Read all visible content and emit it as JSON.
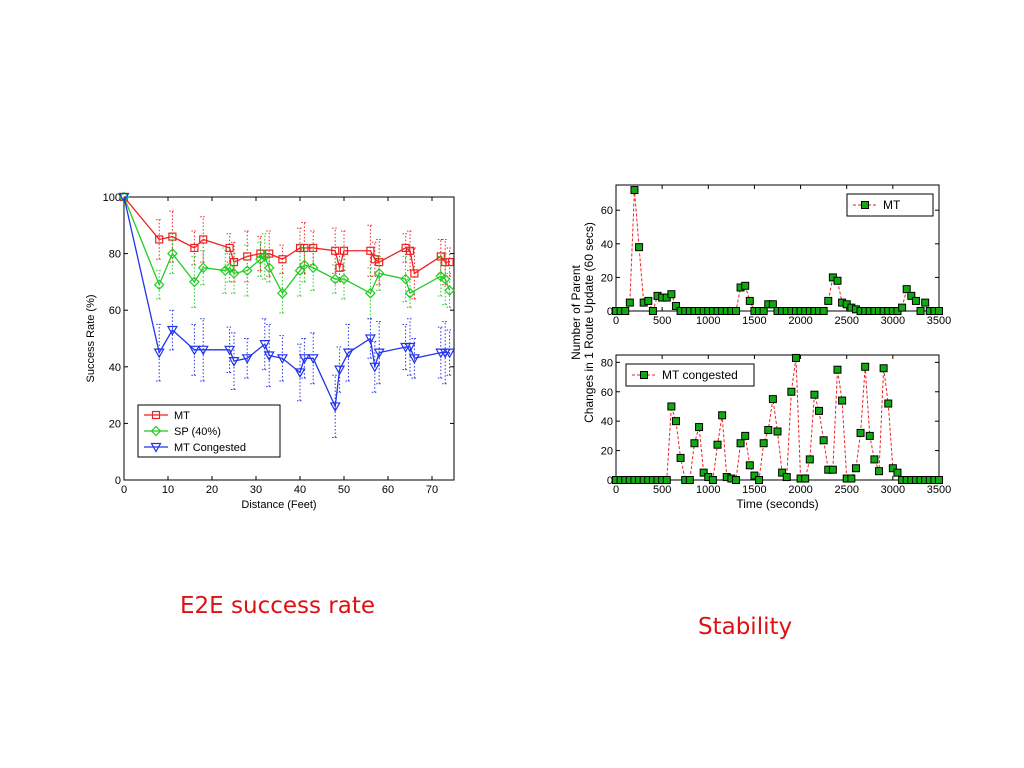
{
  "captions": {
    "left": "E2E success rate",
    "right": "Stability"
  },
  "colors": {
    "caption": "#dd1111",
    "mt_line": "#ee2222",
    "sp_line": "#22cc22",
    "mtc_line": "#2233ee",
    "marker_fill": "#11aa11"
  },
  "chart_data": [
    {
      "type": "line",
      "xlabel": "Distance (Feet)",
      "ylabel": "Success Rate (%)",
      "xlim": [
        0,
        75
      ],
      "ylim": [
        0,
        100
      ],
      "xticks": [
        0,
        10,
        20,
        30,
        40,
        50,
        60,
        70
      ],
      "yticks": [
        0,
        20,
        40,
        60,
        80,
        100
      ],
      "grid": false,
      "legend_position": "bottom-left",
      "series": [
        {
          "name": "MT",
          "marker": "square",
          "x": [
            0,
            8,
            11,
            16,
            18,
            24,
            25,
            28,
            31,
            33,
            36,
            40,
            41,
            43,
            48,
            49,
            50,
            56,
            57,
            58,
            64,
            65,
            66,
            72,
            73,
            74
          ],
          "y": [
            100,
            85,
            86,
            82,
            85,
            82,
            77,
            79,
            80,
            80,
            78,
            82,
            82,
            82,
            81,
            75,
            81,
            81,
            78,
            77,
            82,
            81,
            73,
            79,
            77,
            77
          ]
        },
        {
          "name": "SP (40%)",
          "marker": "diamond",
          "x": [
            0,
            8,
            11,
            16,
            18,
            23,
            24,
            25,
            28,
            31,
            32,
            33,
            36,
            40,
            41,
            43,
            48,
            50,
            56,
            58,
            64,
            65,
            72,
            73,
            74
          ],
          "y": [
            100,
            69,
            80,
            70,
            75,
            74,
            75,
            73,
            74,
            78,
            79,
            75,
            66,
            74,
            76,
            75,
            71,
            71,
            66,
            73,
            71,
            66,
            72,
            71,
            67
          ]
        },
        {
          "name": "MT Congested",
          "marker": "triangle-down",
          "x": [
            0,
            8,
            11,
            16,
            18,
            24,
            25,
            28,
            32,
            33,
            36,
            40,
            41,
            43,
            48,
            49,
            51,
            56,
            57,
            58,
            64,
            65,
            66,
            72,
            73,
            74
          ],
          "y": [
            100,
            45,
            53,
            46,
            46,
            46,
            42,
            43,
            48,
            44,
            43,
            38,
            43,
            43,
            26,
            39,
            45,
            50,
            40,
            45,
            47,
            47,
            43,
            45,
            45,
            45
          ]
        }
      ]
    },
    {
      "type": "line",
      "ylabel": "Number of Parent Changes in 1 Route Update (60 secs)",
      "xlim": [
        0,
        3500
      ],
      "ylim": [
        0,
        75
      ],
      "xticks": [
        0,
        500,
        1000,
        1500,
        2000,
        2500,
        3000,
        3500
      ],
      "yticks": [
        0,
        20,
        40,
        60
      ],
      "grid": false,
      "legend_position": "top-right",
      "series": [
        {
          "name": "MT",
          "marker": "square",
          "x": [
            0,
            50,
            100,
            150,
            200,
            250,
            300,
            350,
            400,
            450,
            500,
            550,
            600,
            650,
            700,
            750,
            800,
            850,
            900,
            950,
            1000,
            1050,
            1100,
            1150,
            1200,
            1250,
            1300,
            1350,
            1400,
            1450,
            1500,
            1550,
            1600,
            1650,
            1700,
            1750,
            1800,
            1850,
            1900,
            1950,
            2000,
            2050,
            2100,
            2150,
            2200,
            2250,
            2300,
            2350,
            2400,
            2450,
            2500,
            2550,
            2600,
            2650,
            2700,
            2750,
            2800,
            2850,
            2900,
            2950,
            3000,
            3050,
            3100,
            3150,
            3200,
            3250,
            3300,
            3350,
            3400,
            3450,
            3500
          ],
          "y": [
            0,
            0,
            0,
            5,
            72,
            38,
            5,
            6,
            0,
            9,
            8,
            8,
            10,
            3,
            0,
            0,
            0,
            0,
            0,
            0,
            0,
            0,
            0,
            0,
            0,
            0,
            0,
            14,
            15,
            6,
            0,
            0,
            0,
            4,
            4,
            0,
            0,
            0,
            0,
            0,
            0,
            0,
            0,
            0,
            0,
            0,
            6,
            20,
            18,
            5,
            4,
            2,
            1,
            0,
            0,
            0,
            0,
            0,
            0,
            0,
            0,
            0,
            2,
            13,
            9,
            6,
            0,
            5,
            0,
            0,
            0
          ]
        }
      ]
    },
    {
      "type": "line",
      "xlabel": "Time (seconds)",
      "xlim": [
        0,
        3500
      ],
      "ylim": [
        0,
        85
      ],
      "xticks": [
        0,
        500,
        1000,
        1500,
        2000,
        2500,
        3000,
        3500
      ],
      "yticks": [
        0,
        20,
        40,
        60,
        80
      ],
      "grid": false,
      "legend_position": "top-left",
      "series": [
        {
          "name": "MT congested",
          "marker": "square",
          "x": [
            0,
            50,
            100,
            150,
            200,
            250,
            300,
            350,
            400,
            450,
            500,
            550,
            600,
            650,
            700,
            750,
            800,
            850,
            900,
            950,
            1000,
            1050,
            1100,
            1150,
            1200,
            1250,
            1300,
            1350,
            1400,
            1450,
            1500,
            1550,
            1600,
            1650,
            1700,
            1750,
            1800,
            1850,
            1900,
            1950,
            2000,
            2050,
            2100,
            2150,
            2200,
            2250,
            2300,
            2350,
            2400,
            2450,
            2500,
            2550,
            2600,
            2650,
            2700,
            2750,
            2800,
            2850,
            2900,
            2950,
            3000,
            3050,
            3100,
            3150,
            3200,
            3250,
            3300,
            3350,
            3400,
            3450,
            3500
          ],
          "y": [
            0,
            0,
            0,
            0,
            0,
            0,
            0,
            0,
            0,
            0,
            0,
            0,
            50,
            40,
            15,
            0,
            0,
            25,
            36,
            5,
            2,
            0,
            24,
            44,
            2,
            1,
            0,
            25,
            30,
            10,
            3,
            0,
            25,
            34,
            55,
            33,
            5,
            2,
            60,
            83,
            1,
            1,
            14,
            58,
            47,
            27,
            7,
            7,
            75,
            54,
            1,
            1,
            8,
            32,
            77,
            30,
            14,
            6,
            76,
            52,
            8,
            5,
            0,
            0,
            0,
            0,
            0,
            0,
            0,
            0,
            0
          ]
        }
      ]
    }
  ]
}
